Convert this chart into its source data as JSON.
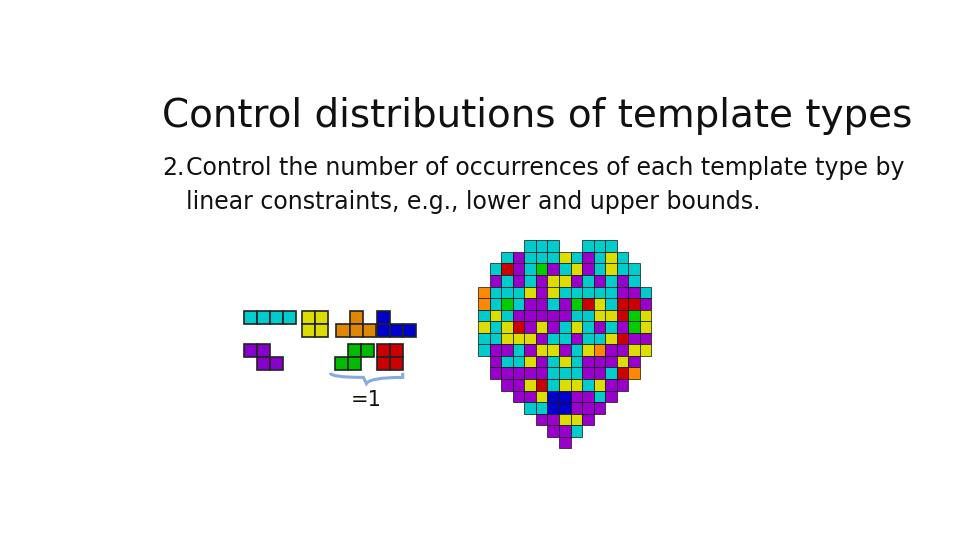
{
  "title": "Control distributions of template types",
  "bullet_number": "2.",
  "bullet_text": "Control the number of occurrences of each template type by\nlinear constraints, e.g., lower and upper bounds.",
  "background_color": "#ffffff",
  "title_fontsize": 28,
  "bullet_fontsize": 17,
  "annotation_text": "=1",
  "annotation_fontsize": 15,
  "brace_color": "#88AADD",
  "heart_grid": [
    [
      0,
      0,
      0,
      0,
      1,
      1,
      1,
      0,
      0,
      1,
      1,
      1,
      0,
      0,
      0
    ],
    [
      0,
      0,
      1,
      1,
      1,
      1,
      1,
      1,
      1,
      1,
      1,
      1,
      1,
      0,
      0
    ],
    [
      0,
      1,
      1,
      1,
      1,
      1,
      1,
      1,
      1,
      1,
      1,
      1,
      1,
      1,
      0
    ],
    [
      0,
      1,
      1,
      1,
      1,
      1,
      1,
      1,
      1,
      1,
      1,
      1,
      1,
      1,
      0
    ],
    [
      1,
      1,
      1,
      1,
      1,
      1,
      1,
      1,
      1,
      1,
      1,
      1,
      1,
      1,
      1
    ],
    [
      1,
      1,
      1,
      1,
      1,
      1,
      1,
      1,
      1,
      1,
      1,
      1,
      1,
      1,
      1
    ],
    [
      1,
      1,
      1,
      1,
      1,
      1,
      1,
      1,
      1,
      1,
      1,
      1,
      1,
      1,
      1
    ],
    [
      1,
      1,
      1,
      1,
      1,
      1,
      1,
      1,
      1,
      1,
      1,
      1,
      1,
      1,
      1
    ],
    [
      1,
      1,
      1,
      1,
      1,
      1,
      1,
      1,
      1,
      1,
      1,
      1,
      1,
      1,
      1
    ],
    [
      1,
      1,
      1,
      1,
      1,
      1,
      1,
      1,
      1,
      1,
      1,
      1,
      1,
      1,
      1
    ],
    [
      0,
      1,
      1,
      1,
      1,
      1,
      1,
      1,
      1,
      1,
      1,
      1,
      1,
      1,
      0
    ],
    [
      0,
      1,
      1,
      1,
      1,
      1,
      1,
      1,
      1,
      1,
      1,
      1,
      1,
      1,
      0
    ],
    [
      0,
      0,
      1,
      1,
      1,
      1,
      1,
      1,
      1,
      1,
      1,
      1,
      1,
      0,
      0
    ],
    [
      0,
      0,
      0,
      1,
      1,
      1,
      1,
      1,
      1,
      1,
      1,
      1,
      0,
      0,
      0
    ],
    [
      0,
      0,
      0,
      0,
      1,
      1,
      1,
      1,
      1,
      1,
      1,
      0,
      0,
      0,
      0
    ],
    [
      0,
      0,
      0,
      0,
      0,
      1,
      1,
      1,
      1,
      1,
      0,
      0,
      0,
      0,
      0
    ],
    [
      0,
      0,
      0,
      0,
      0,
      0,
      1,
      1,
      1,
      0,
      0,
      0,
      0,
      0,
      0
    ],
    [
      0,
      0,
      0,
      0,
      0,
      0,
      0,
      1,
      0,
      0,
      0,
      0,
      0,
      0,
      0
    ]
  ]
}
